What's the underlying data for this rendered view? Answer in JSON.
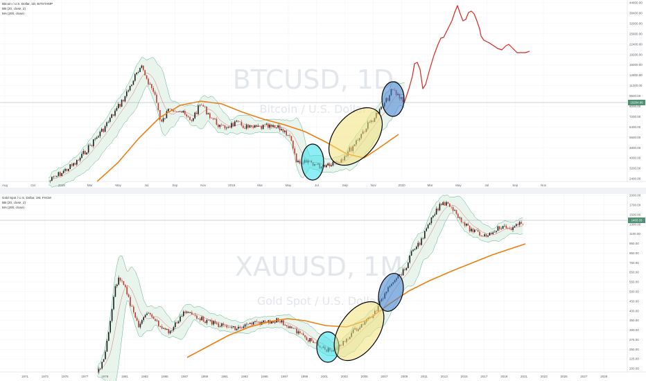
{
  "colors": {
    "candle_up": "#1b1b1b",
    "candle_down": "#c0392b",
    "basis": "#d14b4b",
    "band": "#2e9c73",
    "band_fill": "#dff0e6",
    "ma": "#ef7d0d",
    "projection": "#d9251d",
    "circle_cyan": "#2fe0ec",
    "circle_yellow": "#f3e27a",
    "circle_blue": "#3f7fd6",
    "price_tag": "#4f8f73"
  },
  "chart_data": [
    {
      "type": "candlestick",
      "symbol": "Bitcoin / U.S. Dollar, 1D, BITSTAMP",
      "indicators": [
        "BB (20, close, 2)",
        "MA (200, close)"
      ],
      "watermark_symbol": "BTCUSD, 1D",
      "watermark_name": "Bitcoin / U.S. Dollar",
      "x_ticks": [
        "Aug",
        "Oct",
        "2018",
        "Mar",
        "May",
        "Jul",
        "Sep",
        "Nov",
        "2019",
        "Mar",
        "May",
        "Jul",
        "Sep",
        "Nov",
        "2020",
        "Mar",
        "May",
        "Jul",
        "Sep",
        "Nov"
      ],
      "y_ticks": [
        "2400.00",
        "3200.00",
        "4000.00",
        "4800.00",
        "5600.00",
        "6400.00",
        "7200.00",
        "8000.00",
        "9600.00",
        "11200.00",
        "12800.00",
        "16000.00",
        "19200.00",
        "22400.00",
        "25600.00",
        "32000.00",
        "38400.00",
        "44800.00"
      ],
      "last_price": "10204.96",
      "series": [
        {
          "name": "close",
          "x": [
            "2017-08",
            "2017-09",
            "2017-10",
            "2017-11",
            "2017-12",
            "2018-01",
            "2018-02",
            "2018-03",
            "2018-04",
            "2018-05",
            "2018-06",
            "2018-07",
            "2018-08",
            "2018-09",
            "2018-10",
            "2018-11",
            "2018-12",
            "2019-01",
            "2019-02",
            "2019-03",
            "2019-04",
            "2019-05",
            "2019-06",
            "2019-07"
          ],
          "values": [
            4700,
            4300,
            6400,
            10000,
            14000,
            10200,
            9600,
            7000,
            9200,
            7500,
            6400,
            7700,
            7000,
            6600,
            6300,
            4000,
            3700,
            3450,
            3800,
            4100,
            5300,
            8600,
            11000,
            10200
          ]
        },
        {
          "name": "MA (200, close)",
          "x": [
            "2017-10",
            "2017-12",
            "2018-02",
            "2018-04",
            "2018-06",
            "2018-08",
            "2018-10",
            "2018-12",
            "2019-02",
            "2019-04",
            "2019-06",
            "2019-07"
          ],
          "values": [
            3000,
            5000,
            8000,
            9300,
            8700,
            7900,
            7300,
            6500,
            5600,
            5000,
            5600,
            6400
          ]
        },
        {
          "name": "projection",
          "x": [
            "2019-07",
            "2019-08",
            "2019-09",
            "2019-10",
            "2019-11",
            "2019-12",
            "2020-01",
            "2020-02",
            "2020-03",
            "2020-04"
          ],
          "values": [
            10200,
            13500,
            20000,
            17000,
            32000,
            52000,
            46000,
            35000,
            30000,
            27000
          ]
        }
      ]
    },
    {
      "type": "candlestick",
      "symbol": "Gold Spot / U.S. Dollar, 1M, FXCM",
      "indicators": [
        "BB (20, close, 2)",
        "MA (200, close)"
      ],
      "watermark_symbol": "XAUUSD, 1M",
      "watermark_name": "Gold Spot / U.S. Dollar",
      "x_ticks": [
        "1971",
        "1973",
        "1975",
        "1977",
        "1979",
        "1981",
        "1983",
        "1985",
        "1987",
        "1989",
        "1991",
        "1993",
        "1995",
        "1997",
        "1999",
        "2001",
        "2003",
        "2005",
        "2007",
        "2009",
        "2011",
        "2013",
        "2015",
        "2017",
        "2019",
        "2021",
        "2023",
        "2025",
        "2027",
        "2029"
      ],
      "y_ticks": [
        "2000.00",
        "1700.00",
        "1500.00",
        "1300.00",
        "1100.00",
        "950.00",
        "850.00",
        "750.00",
        "650.00",
        "550.00",
        "500.00",
        "450.00",
        "400.00",
        "350.00",
        "300.00",
        "275.00",
        "250.00",
        "225.00",
        "200.00"
      ],
      "last_price": "1403.33",
      "series": [
        {
          "name": "close",
          "x": [
            1979,
            1980,
            1982,
            1985,
            1987,
            1990,
            1993,
            1996,
            1999,
            2001,
            2003,
            2005,
            2006,
            2008,
            2011,
            2013,
            2015,
            2017,
            2019
          ],
          "values": [
            230,
            650,
            340,
            300,
            460,
            380,
            390,
            390,
            260,
            270,
            400,
            480,
            620,
            880,
            1900,
            1250,
            1100,
            1280,
            1403
          ]
        },
        {
          "name": "MA (200, close)",
          "x": [
            1987,
            1992,
            1997,
            2002,
            2006,
            2010,
            2014,
            2019
          ],
          "values": [
            210,
            330,
            390,
            360,
            520,
            760,
            950,
            1200
          ]
        }
      ]
    }
  ]
}
